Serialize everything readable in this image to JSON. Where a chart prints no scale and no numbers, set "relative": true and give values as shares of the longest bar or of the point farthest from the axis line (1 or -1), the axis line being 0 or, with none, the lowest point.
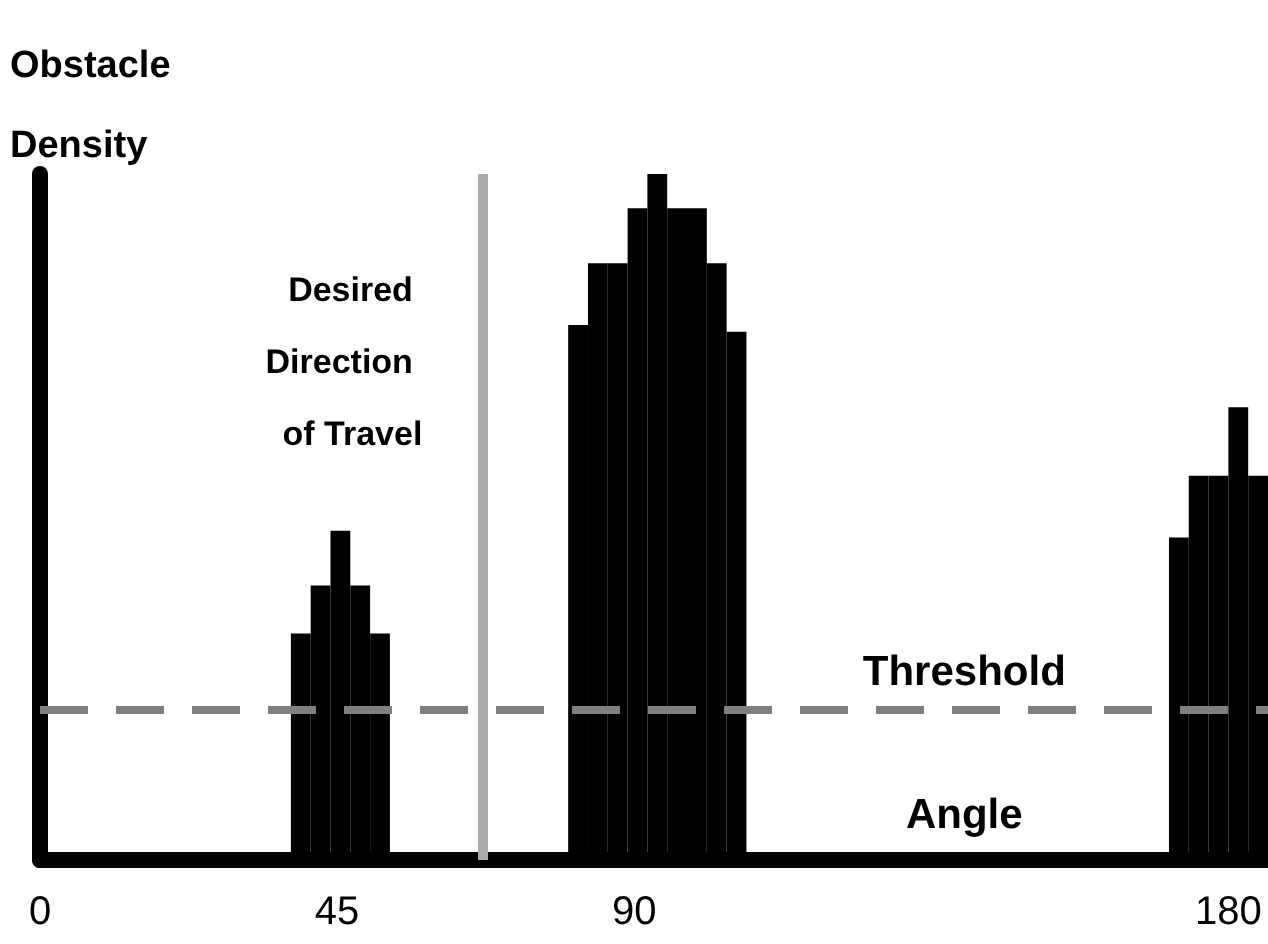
{
  "chart_data": {
    "type": "bar",
    "relative": true,
    "ylabel": "Obstacle Density",
    "xlabel": "Angle",
    "x": [
      39.5,
      42.5,
      45.5,
      48.5,
      51.5,
      81.5,
      84.5,
      87.5,
      90.5,
      93.5,
      96.5,
      99.5,
      102.5,
      105.5,
      172.5,
      175.5,
      178.5,
      181.5,
      184.5
    ],
    "values": [
      0.33,
      0.4,
      0.48,
      0.4,
      0.33,
      0.78,
      0.87,
      0.87,
      0.95,
      1,
      0.95,
      0.95,
      0.87,
      0.77,
      0.47,
      0.56,
      0.56,
      0.66,
      0.56
    ],
    "color": "#000000",
    "xlim": [
      0,
      186
    ],
    "xticks": [
      0,
      45,
      90,
      180
    ],
    "ref_lines": [
      {
        "axis": "x",
        "value": 67,
        "label": "Desired Direction of Travel",
        "color": "#aaaaaa",
        "line_style": "solid"
      },
      {
        "axis": "y",
        "value": 0.22,
        "label": "Threshold",
        "color": "#808080",
        "line_style": "dashed"
      }
    ],
    "grid": false
  }
}
